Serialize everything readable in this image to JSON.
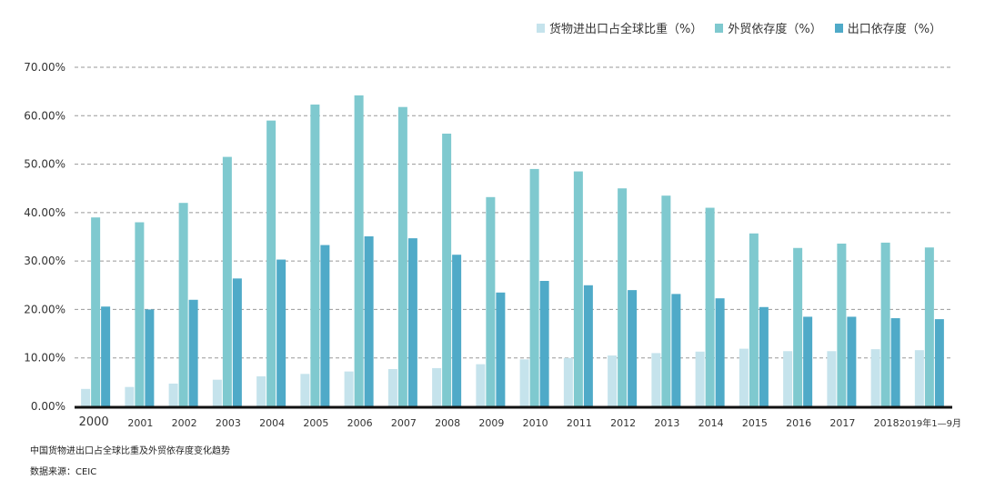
{
  "caption": "中国货物进出口占全球比重及外贸依存度变化趋势",
  "source": "数据来源：CEIC",
  "colors": {
    "series1": "#c5e3ec",
    "series2": "#7fc9cf",
    "series3": "#4faac8",
    "grid": "#999999",
    "axis": "#111111"
  },
  "chart_data": {
    "type": "bar",
    "categories": [
      "2000",
      "2001",
      "2002",
      "2003",
      "2004",
      "2005",
      "2006",
      "2007",
      "2008",
      "2009",
      "2010",
      "2011",
      "2012",
      "2013",
      "2014",
      "2015",
      "2016",
      "2017",
      "2018",
      "2019年1—9月"
    ],
    "series": [
      {
        "name": "货物进出口占全球比重（%）",
        "values": [
          3.6,
          4.0,
          4.7,
          5.5,
          6.2,
          6.7,
          7.2,
          7.7,
          7.9,
          8.7,
          9.7,
          10.0,
          10.5,
          11.0,
          11.3,
          11.9,
          11.4,
          11.4,
          11.8,
          11.6
        ]
      },
      {
        "name": "外贸依存度（%）",
        "values": [
          39.0,
          38.0,
          42.0,
          51.5,
          59.0,
          62.3,
          64.2,
          61.8,
          56.3,
          43.2,
          49.0,
          48.5,
          45.0,
          43.5,
          41.0,
          35.7,
          32.7,
          33.6,
          33.8,
          32.8
        ]
      },
      {
        "name": "出口依存度（%）",
        "values": [
          20.6,
          20.0,
          22.0,
          26.4,
          30.3,
          33.3,
          35.1,
          34.7,
          31.3,
          23.5,
          25.9,
          25.0,
          24.0,
          23.2,
          22.3,
          20.5,
          18.5,
          18.5,
          18.2,
          18.0
        ]
      }
    ],
    "y_ticks": [
      "0.00%",
      "10.00%",
      "20.00%",
      "30.00%",
      "40.00%",
      "50.00%",
      "60.00%",
      "70.00%"
    ],
    "ylim": [
      0,
      70
    ],
    "grid": true,
    "legend_position": "top-right"
  }
}
